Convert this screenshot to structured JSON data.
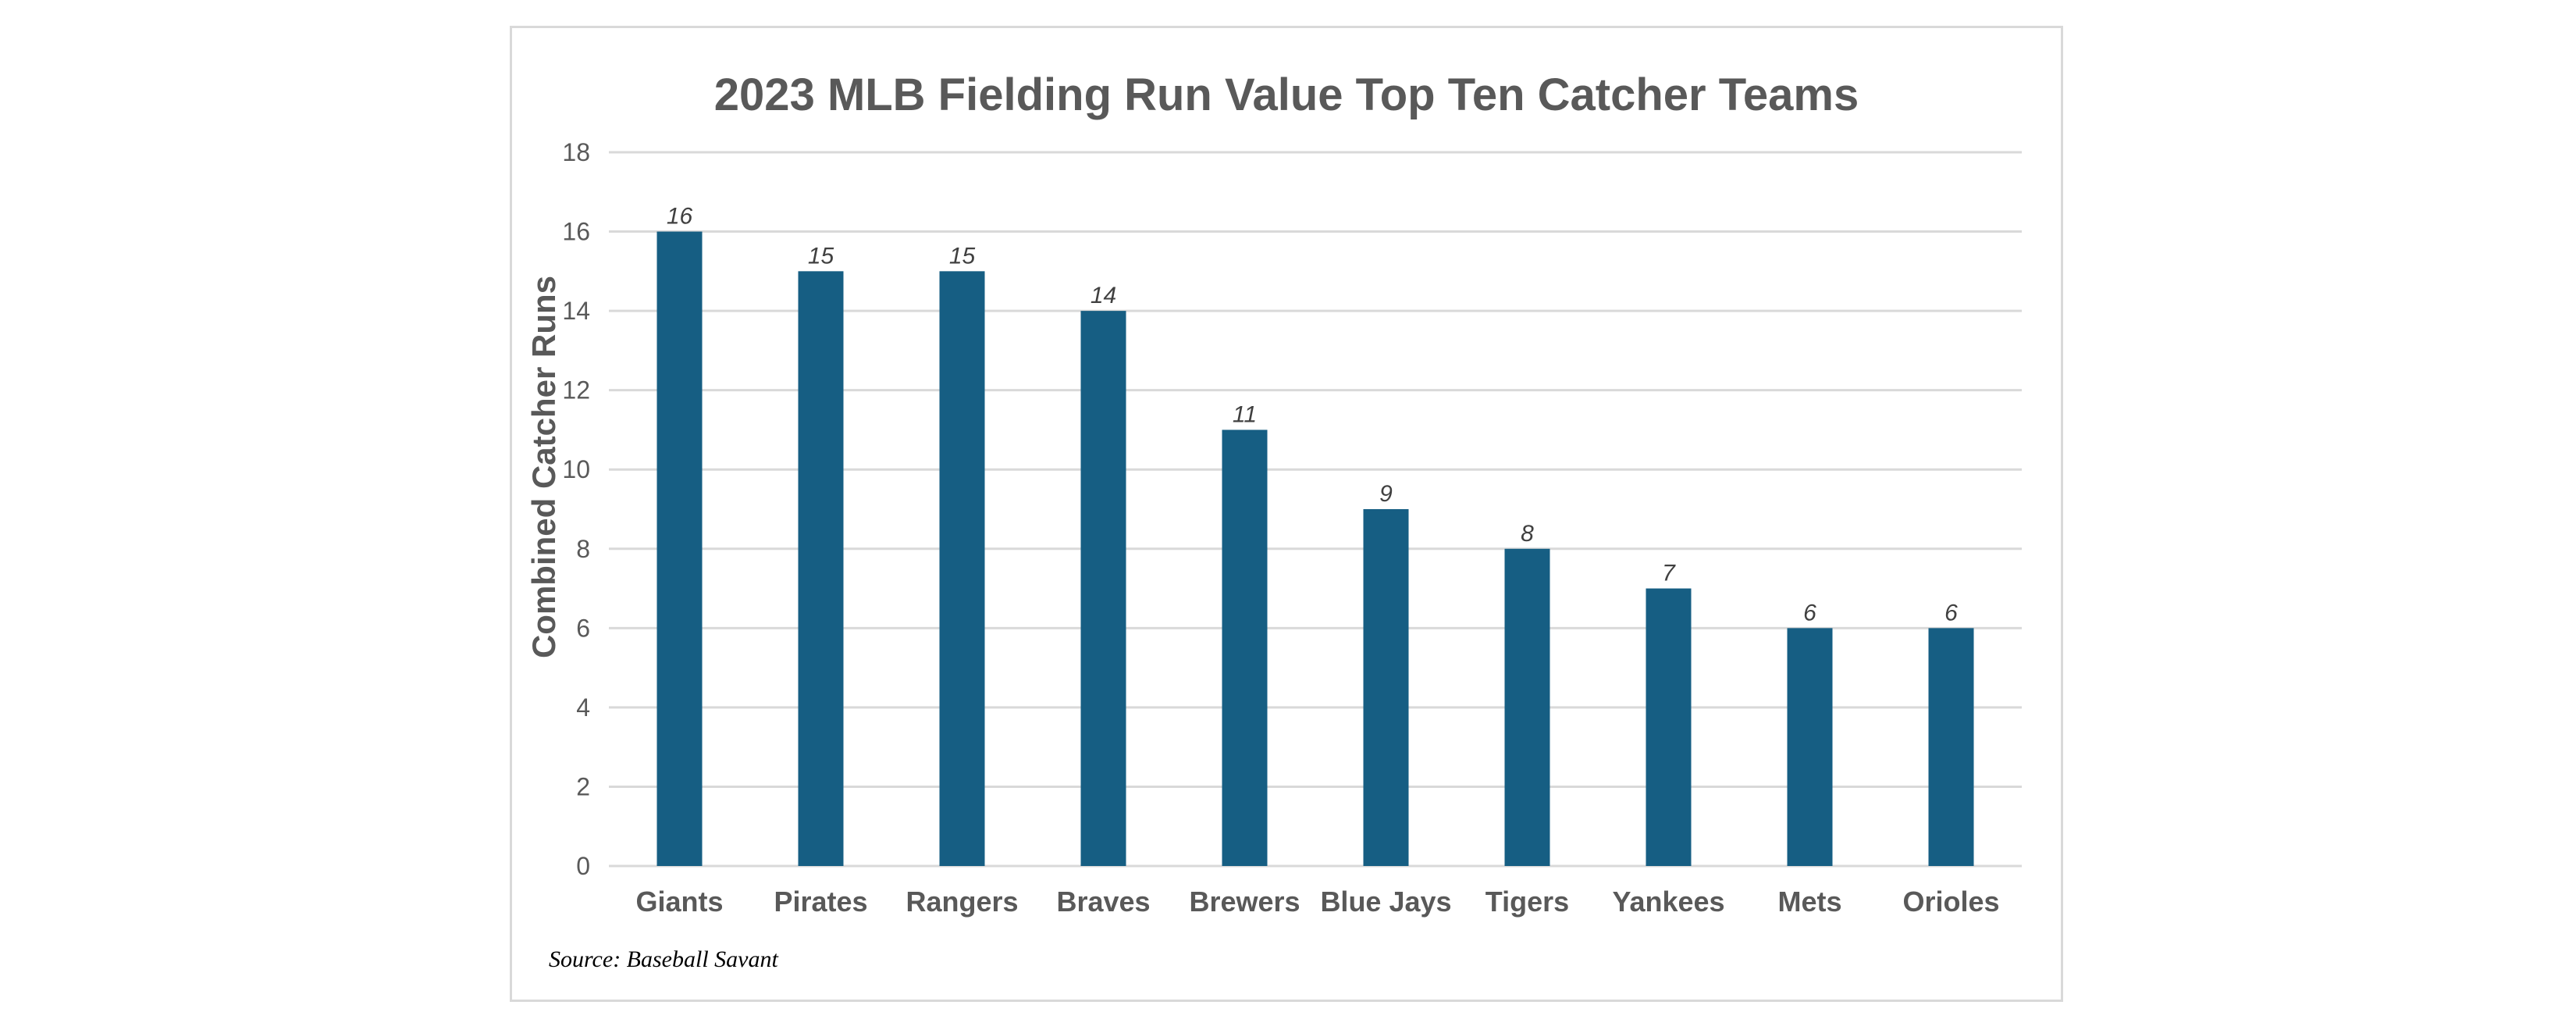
{
  "chart_data": {
    "type": "bar",
    "title": "2023 MLB Fielding Run Value Top Ten Catcher Teams",
    "xlabel": "",
    "ylabel": "Combined Catcher Runs",
    "categories": [
      "Giants",
      "Pirates",
      "Rangers",
      "Braves",
      "Brewers",
      "Blue Jays",
      "Tigers",
      "Yankees",
      "Mets",
      "Orioles"
    ],
    "values": [
      16,
      15,
      15,
      14,
      11,
      9,
      8,
      7,
      6,
      6
    ],
    "ylim": [
      0,
      18
    ],
    "yticks": [
      0,
      2,
      4,
      6,
      8,
      10,
      12,
      14,
      16,
      18
    ],
    "grid": true,
    "legend": "none",
    "data_labels": true,
    "bar_color": "#165e83",
    "source": "Source: Baseball Savant"
  }
}
